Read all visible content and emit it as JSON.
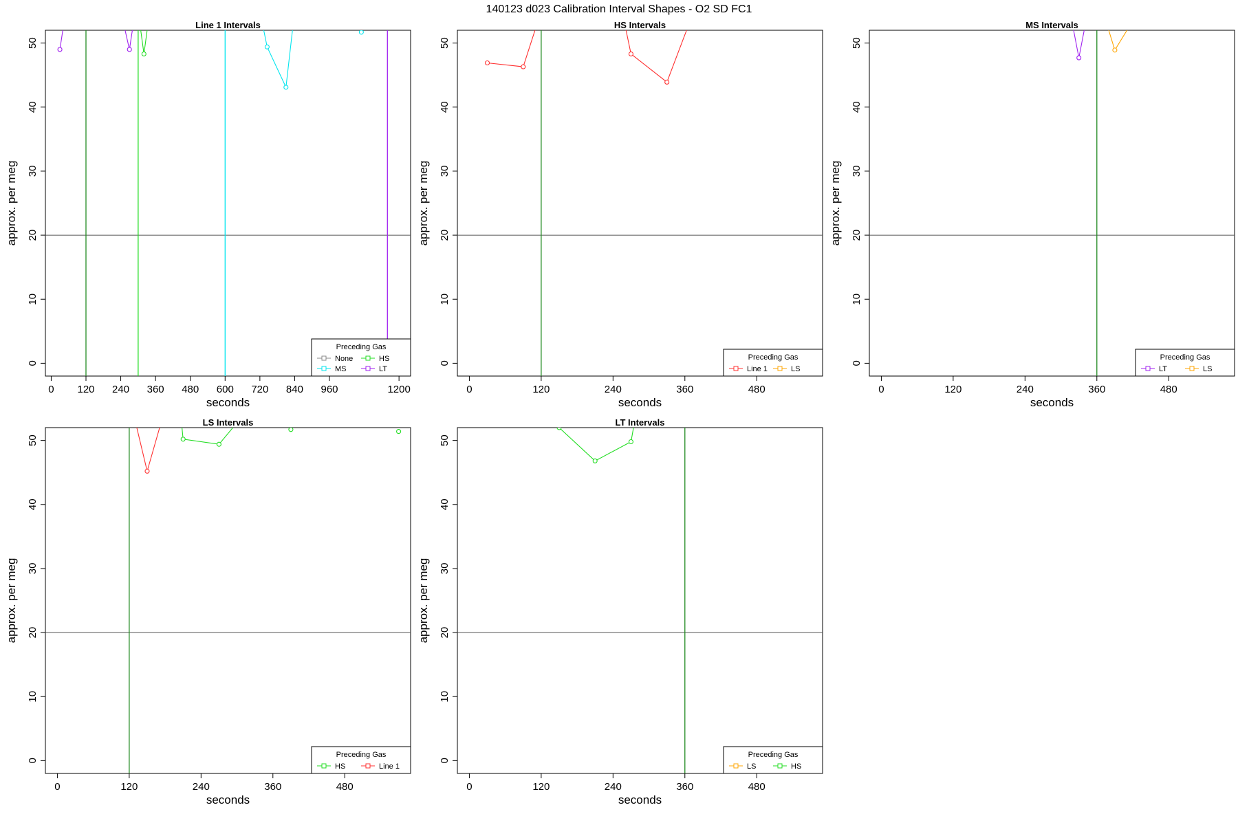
{
  "page_title": "140123   d023   Calibration Interval Shapes - O2 SD FC1",
  "chart_data": [
    {
      "type": "line",
      "title": "Line 1 Intervals",
      "xlabel": "seconds",
      "ylabel": "approx. per meg",
      "xlim": [
        -20,
        1240
      ],
      "ylim": [
        -2,
        52
      ],
      "xticks": [
        0,
        120,
        240,
        360,
        480,
        600,
        720,
        840,
        960,
        1200
      ],
      "yticks": [
        0,
        10,
        20,
        30,
        40,
        50
      ],
      "hline": 20,
      "legend": {
        "title": "Preceding Gas",
        "position": "bottom-right",
        "ncol": 2,
        "entries": [
          {
            "label": "None",
            "color": "#888888"
          },
          {
            "label": "HS",
            "color": "#22dd22"
          },
          {
            "label": "MS",
            "color": "#00e5ee"
          },
          {
            "label": "LT",
            "color": "#a020f0"
          }
        ]
      },
      "vlines": [
        {
          "x": 120,
          "color": "#228b22"
        },
        {
          "x": 300,
          "color": "#22dd22"
        },
        {
          "x": 600,
          "color": "#00e5ee"
        },
        {
          "x": 1160,
          "color": "#a020f0"
        }
      ],
      "series": [
        {
          "name": "LT",
          "color": "#a020f0",
          "x": [
            30,
            50
          ],
          "y": [
            49.0,
            55
          ]
        },
        {
          "name": "LT",
          "color": "#a020f0",
          "x": [
            240,
            270,
            290
          ],
          "y": [
            55,
            49.0,
            55
          ]
        },
        {
          "name": "HS",
          "color": "#22dd22",
          "x": [
            300,
            320,
            340
          ],
          "y": [
            55,
            48.3,
            55
          ]
        },
        {
          "name": "MS",
          "color": "#00e5ee",
          "x": [
            720,
            745,
            810,
            840
          ],
          "y": [
            55,
            49.4,
            43.1,
            55
          ]
        },
        {
          "name": "MS",
          "color": "#00e5ee",
          "x": [
            1070,
            1080
          ],
          "y": [
            51.7,
            53
          ]
        }
      ]
    },
    {
      "type": "line",
      "title": "HS Intervals",
      "xlabel": "seconds",
      "ylabel": "approx. per meg",
      "xlim": [
        -20,
        590
      ],
      "ylim": [
        -2,
        52
      ],
      "xticks": [
        0,
        120,
        240,
        360,
        480
      ],
      "yticks": [
        0,
        10,
        20,
        30,
        40,
        50
      ],
      "hline": 20,
      "legend": {
        "title": "Preceding Gas",
        "position": "bottom-right",
        "ncol": 2,
        "entries": [
          {
            "label": "Line 1",
            "color": "#ff3030"
          },
          {
            "label": "LS",
            "color": "#ffa500"
          }
        ]
      },
      "vlines": [
        {
          "x": 120,
          "color": "#228b22"
        }
      ],
      "series": [
        {
          "name": "Line 1",
          "color": "#ff3030",
          "x": [
            30,
            90,
            120
          ],
          "y": [
            46.9,
            46.3,
            55
          ]
        },
        {
          "name": "Line 1",
          "color": "#ff3030",
          "x": [
            255,
            270,
            330,
            375
          ],
          "y": [
            55,
            48.3,
            43.9,
            55
          ]
        }
      ]
    },
    {
      "type": "line",
      "title": "MS Intervals",
      "xlabel": "seconds",
      "ylabel": "approx. per meg",
      "xlim": [
        -20,
        590
      ],
      "ylim": [
        -2,
        52
      ],
      "xticks": [
        0,
        120,
        240,
        360,
        480
      ],
      "yticks": [
        0,
        10,
        20,
        30,
        40,
        50
      ],
      "hline": 20,
      "legend": {
        "title": "Preceding Gas",
        "position": "bottom-right",
        "ncol": 2,
        "entries": [
          {
            "label": "LT",
            "color": "#a020f0"
          },
          {
            "label": "LS",
            "color": "#ffa500"
          }
        ]
      },
      "vlines": [
        {
          "x": 360,
          "color": "#228b22"
        }
      ],
      "series": [
        {
          "name": "LT",
          "color": "#a020f0",
          "x": [
            315,
            330,
            345
          ],
          "y": [
            55,
            47.7,
            55
          ]
        },
        {
          "name": "LS",
          "color": "#ffa500",
          "x": [
            370,
            390,
            430
          ],
          "y": [
            55,
            48.9,
            55
          ]
        }
      ]
    },
    {
      "type": "line",
      "title": "LS Intervals",
      "xlabel": "seconds",
      "ylabel": "approx. per meg",
      "xlim": [
        -20,
        590
      ],
      "ylim": [
        -2,
        52
      ],
      "xticks": [
        0,
        120,
        240,
        360,
        480
      ],
      "yticks": [
        0,
        10,
        20,
        30,
        40,
        50
      ],
      "hline": 20,
      "legend": {
        "title": "Preceding Gas",
        "position": "bottom-right",
        "ncol": 2,
        "entries": [
          {
            "label": "HS",
            "color": "#22dd22"
          },
          {
            "label": "Line 1",
            "color": "#ff3030"
          }
        ]
      },
      "vlines": [
        {
          "x": 120,
          "color": "#228b22"
        }
      ],
      "series": [
        {
          "name": "Line 1",
          "color": "#ff3030",
          "x": [
            125,
            150,
            180
          ],
          "y": [
            55,
            45.2,
            55
          ]
        },
        {
          "name": "HS",
          "color": "#22dd22",
          "x": [
            205,
            210,
            270,
            320
          ],
          "y": [
            55,
            50.2,
            49.4,
            55
          ]
        },
        {
          "name": "HS",
          "color": "#22dd22",
          "x": [
            390
          ],
          "y": [
            51.7
          ]
        },
        {
          "name": "HS",
          "color": "#22dd22",
          "x": [
            570
          ],
          "y": [
            51.4
          ]
        }
      ]
    },
    {
      "type": "line",
      "title": "LT Intervals",
      "xlabel": "seconds",
      "ylabel": "approx. per meg",
      "xlim": [
        -20,
        590
      ],
      "ylim": [
        -2,
        52
      ],
      "xticks": [
        0,
        120,
        240,
        360,
        480
      ],
      "yticks": [
        0,
        10,
        20,
        30,
        40,
        50
      ],
      "hline": 20,
      "legend": {
        "title": "Preceding Gas",
        "position": "bottom-right",
        "ncol": 2,
        "entries": [
          {
            "label": "LS",
            "color": "#ffa500"
          },
          {
            "label": "HS",
            "color": "#22dd22"
          }
        ]
      },
      "vlines": [
        {
          "x": 360,
          "color": "#228b22"
        }
      ],
      "series": [
        {
          "name": "HS",
          "color": "#22dd22",
          "x": [
            150,
            210,
            270,
            280
          ],
          "y": [
            52,
            46.8,
            49.8,
            55
          ]
        }
      ]
    }
  ]
}
